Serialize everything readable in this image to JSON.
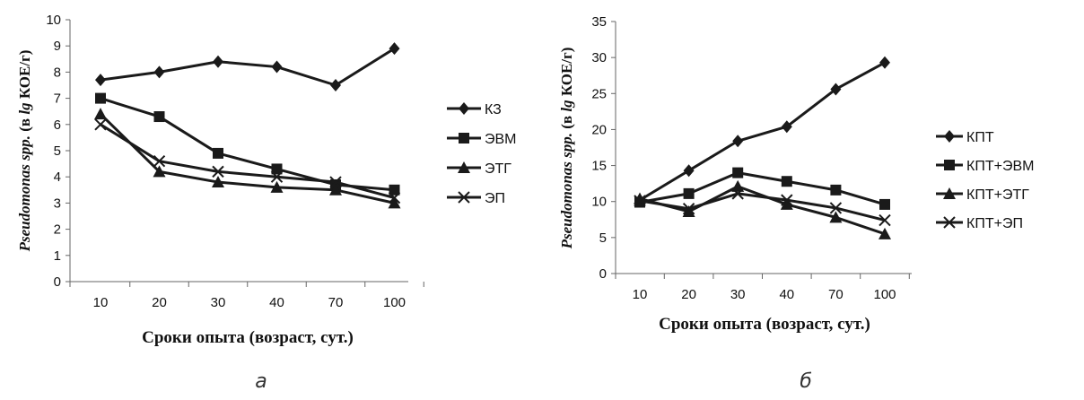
{
  "chart_data": [
    {
      "type": "line",
      "panel_label": "а",
      "categories": [
        "10",
        "20",
        "30",
        "40",
        "70",
        "100"
      ],
      "ylim": [
        0,
        10
      ],
      "yticks": [
        0,
        1,
        2,
        3,
        4,
        5,
        6,
        7,
        8,
        9,
        10
      ],
      "xlabel": "Сроки опыта (возраст, сут.)",
      "ylabel_italic": "Pseudomonas spp.",
      "ylabel_mid": " (в ",
      "ylabel_lg": "lg",
      "ylabel_rest": " КОЕ/г)",
      "legend_position": "right",
      "grid": false,
      "series": [
        {
          "name": "КЗ",
          "marker": "diamond",
          "values": [
            7.7,
            8.0,
            8.4,
            8.2,
            7.5,
            8.9
          ]
        },
        {
          "name": "ЭВМ",
          "marker": "square",
          "values": [
            7.0,
            6.3,
            4.9,
            4.3,
            3.7,
            3.5
          ]
        },
        {
          "name": "ЭТГ",
          "marker": "triangle",
          "values": [
            6.4,
            4.2,
            3.8,
            3.6,
            3.5,
            3.0
          ]
        },
        {
          "name": "ЭП",
          "marker": "x",
          "values": [
            6.0,
            4.6,
            4.2,
            4.0,
            3.8,
            3.2
          ]
        }
      ]
    },
    {
      "type": "line",
      "panel_label": "б",
      "categories": [
        "10",
        "20",
        "30",
        "40",
        "70",
        "100"
      ],
      "ylim": [
        0,
        35
      ],
      "yticks": [
        0,
        5,
        10,
        15,
        20,
        25,
        30,
        35
      ],
      "xlabel": "Сроки опыта (возраст, сут.)",
      "ylabel_italic": "Pseudomonas spp.",
      "ylabel_mid": " (в ",
      "ylabel_lg": "lg",
      "ylabel_rest": " КОЕ/г)",
      "legend_position": "right",
      "grid": false,
      "series": [
        {
          "name": "КПТ",
          "marker": "diamond",
          "values": [
            10.2,
            14.3,
            18.4,
            20.4,
            25.6,
            29.3
          ]
        },
        {
          "name": "КПТ+ЭВМ",
          "marker": "square",
          "values": [
            9.9,
            11.1,
            14.0,
            12.8,
            11.6,
            9.6
          ]
        },
        {
          "name": "КПТ+ЭТГ",
          "marker": "triangle",
          "values": [
            10.4,
            8.6,
            12.1,
            9.6,
            7.8,
            5.5
          ]
        },
        {
          "name": "КПТ+ЭП",
          "marker": "x",
          "values": [
            10.1,
            9.0,
            11.1,
            10.2,
            9.1,
            7.4
          ]
        }
      ]
    }
  ]
}
